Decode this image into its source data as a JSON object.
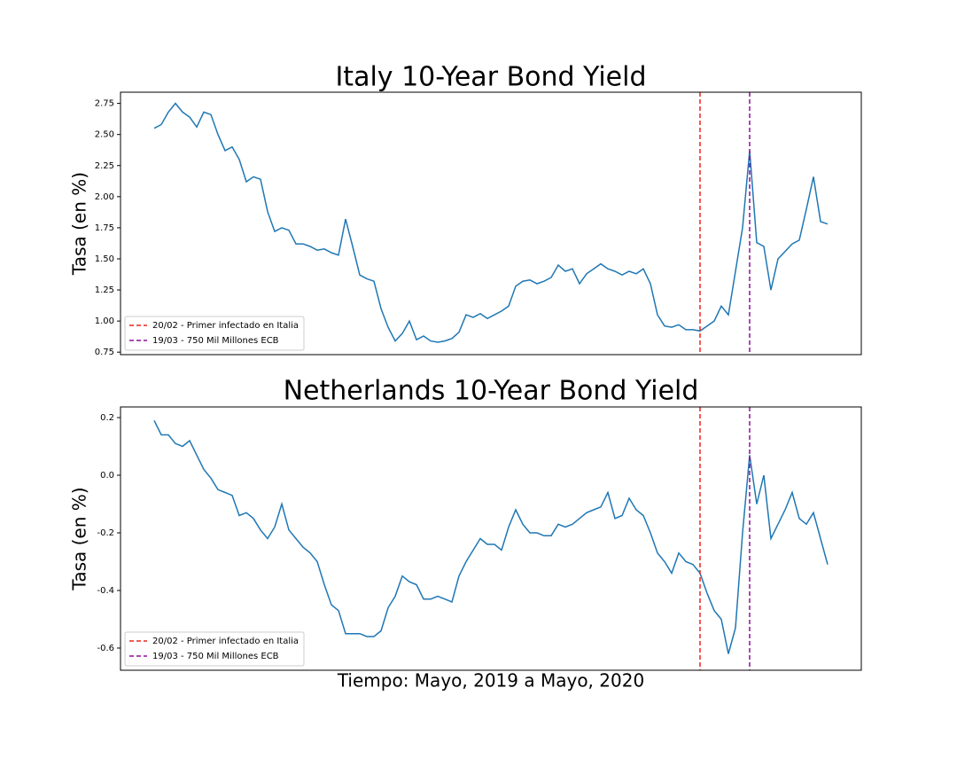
{
  "chart_data": [
    {
      "type": "line",
      "title": "Italy 10-Year Bond Yield",
      "ylabel": "Tasa (en %)",
      "ylim": [
        0.73,
        2.84
      ],
      "yticks": [
        0.75,
        {
          "value": 1.0,
          "label": "1.00"
        },
        1.25,
        {
          "value": 1.5,
          "label": "1.50"
        },
        1.75,
        {
          "value": 2.0,
          "label": "2.00"
        },
        2.25,
        {
          "value": 2.5,
          "label": "2.50"
        },
        2.75
      ],
      "series": [
        {
          "color": "#1f77b4",
          "values": [
            2.55,
            2.58,
            2.68,
            2.75,
            2.68,
            2.64,
            2.56,
            2.68,
            2.66,
            2.5,
            2.37,
            2.4,
            2.3,
            2.12,
            2.16,
            2.14,
            1.88,
            1.72,
            1.75,
            1.73,
            1.62,
            1.62,
            1.6,
            1.57,
            1.58,
            1.55,
            1.53,
            1.82,
            1.6,
            1.37,
            1.34,
            1.32,
            1.1,
            0.95,
            0.84,
            0.9,
            1.0,
            0.85,
            0.88,
            0.84,
            0.83,
            0.84,
            0.86,
            0.91,
            1.05,
            1.03,
            1.06,
            1.02,
            1.05,
            1.08,
            1.12,
            1.28,
            1.32,
            1.33,
            1.3,
            1.32,
            1.35,
            1.45,
            1.4,
            1.42,
            1.3,
            1.38,
            1.42,
            1.46,
            1.42,
            1.4,
            1.37,
            1.4,
            1.38,
            1.42,
            1.3,
            1.05,
            0.96,
            0.95,
            0.97,
            0.93,
            0.93,
            0.92,
            0.96,
            1.0,
            1.12,
            1.05,
            1.4,
            1.75,
            2.37,
            1.63,
            1.6,
            1.25,
            1.5,
            1.56,
            1.62,
            1.65,
            1.9,
            2.16,
            1.8,
            1.78
          ]
        }
      ],
      "vlines": [
        {
          "label": "20/02 - Primer infectado en Italia",
          "color": "#e8261e",
          "index": 77
        },
        {
          "label": "19/03 - 750 Mil Millones ECB",
          "color": "#8e0f9a",
          "index": 84
        }
      ],
      "legend": "lower left"
    },
    {
      "type": "line",
      "title": "Netherlands 10-Year Bond Yield",
      "ylabel": "Tasa (en %)",
      "xlabel": "Tiempo: Mayo, 2019 a Mayo, 2020",
      "ylim": [
        -0.677,
        0.237
      ],
      "yticks": [
        -0.6,
        -0.4,
        -0.2,
        {
          "value": 0,
          "label": "0.0"
        },
        0.2
      ],
      "series": [
        {
          "color": "#1f77b4",
          "values": [
            0.19,
            0.14,
            0.14,
            0.11,
            0.1,
            0.12,
            0.07,
            0.02,
            -0.01,
            -0.05,
            -0.06,
            -0.07,
            -0.14,
            -0.13,
            -0.15,
            -0.19,
            -0.22,
            -0.18,
            -0.1,
            -0.19,
            -0.22,
            -0.25,
            -0.27,
            -0.3,
            -0.38,
            -0.45,
            -0.47,
            -0.55,
            -0.55,
            -0.55,
            -0.56,
            -0.56,
            -0.54,
            -0.46,
            -0.42,
            -0.35,
            -0.37,
            -0.38,
            -0.43,
            -0.43,
            -0.42,
            -0.43,
            -0.44,
            -0.35,
            -0.3,
            -0.26,
            -0.22,
            -0.24,
            -0.24,
            -0.26,
            -0.18,
            -0.12,
            -0.17,
            -0.2,
            -0.2,
            -0.21,
            -0.21,
            -0.17,
            -0.18,
            -0.17,
            -0.15,
            -0.13,
            -0.12,
            -0.11,
            -0.06,
            -0.15,
            -0.14,
            -0.08,
            -0.12,
            -0.14,
            -0.2,
            -0.27,
            -0.3,
            -0.34,
            -0.27,
            -0.3,
            -0.31,
            -0.34,
            -0.41,
            -0.47,
            -0.5,
            -0.62,
            -0.53,
            -0.2,
            0.07,
            -0.1,
            0.0,
            -0.22,
            -0.17,
            -0.12,
            -0.06,
            -0.15,
            -0.17,
            -0.13,
            -0.22,
            -0.31
          ]
        }
      ],
      "vlines": [
        {
          "label": "20/02 - Primer infectado en Italia",
          "color": "#e8261e",
          "index": 77
        },
        {
          "label": "19/03 - 750 Mil Millones ECB",
          "color": "#8e0f9a",
          "index": 84
        }
      ],
      "legend": "lower left"
    }
  ]
}
